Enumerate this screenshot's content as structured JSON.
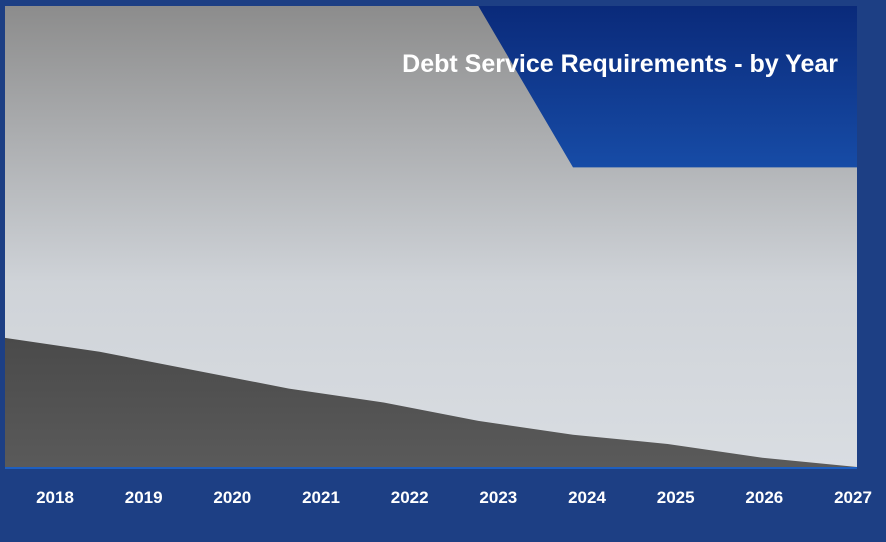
{
  "chart_data": {
    "type": "area",
    "title": "Debt Service Requirements - by Year",
    "xlabel": "",
    "ylabel": "",
    "categories": [
      "2018",
      "2019",
      "2020",
      "2021",
      "2022",
      "2023",
      "2024",
      "2025",
      "2026",
      "2027"
    ],
    "ylim": [
      0,
      100
    ],
    "stacked": true,
    "grid": false,
    "legend": "none",
    "series": [
      {
        "values": [
          28,
          25,
          21,
          17,
          14,
          10,
          7,
          5,
          2,
          0
        ]
      },
      {
        "values": [
          72,
          75,
          79,
          83,
          86,
          90,
          58,
          60,
          63,
          65
        ]
      }
    ],
    "colors": {
      "background_top": "#0a2a7a",
      "background_bottom": "#1e5fc0",
      "frame": "#1d3f84",
      "lower_area": "#5a5a5a",
      "upper_area_top": "#8c8c8c",
      "upper_area_bottom": "#d9dde2",
      "text": "#ffffff"
    }
  }
}
